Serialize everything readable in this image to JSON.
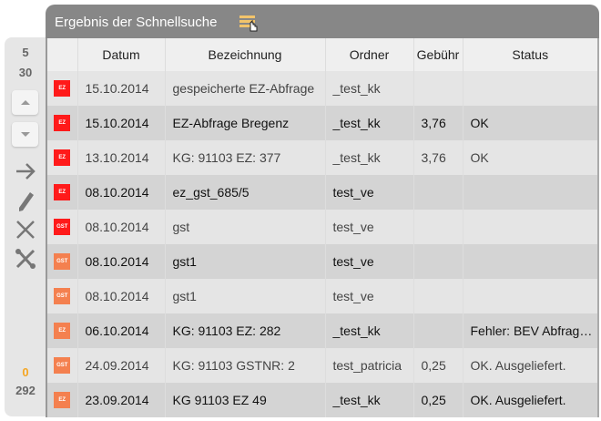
{
  "title": "Ergebnis der Schnellsuche",
  "sidebar": {
    "page_size_a": "5",
    "page_size_b": "30",
    "count_selected": "0",
    "count_total": "292",
    "count_selected_color": "#f5a623"
  },
  "columns": [
    "",
    "Datum",
    "Bezeichnung",
    "Ordner",
    "Gebühr",
    "Status"
  ],
  "badge_colors": {
    "red": "#ff1a1a",
    "orange": "#f4804f"
  },
  "rows": [
    {
      "type": "EZ",
      "color": "red",
      "datum": "15.10.2014",
      "bezeichnung": "gespeicherte EZ-Abfrage",
      "ordner": "_test_kk",
      "gebuehr": "",
      "status": ""
    },
    {
      "type": "EZ",
      "color": "red",
      "datum": "15.10.2014",
      "bezeichnung": "EZ-Abfrage Bregenz",
      "ordner": "_test_kk",
      "gebuehr": "3,76",
      "status": "OK"
    },
    {
      "type": "EZ",
      "color": "red",
      "datum": "13.10.2014",
      "bezeichnung": "KG: 91103 EZ: 377",
      "ordner": "_test_kk",
      "gebuehr": "3,76",
      "status": "OK"
    },
    {
      "type": "EZ",
      "color": "red",
      "datum": "08.10.2014",
      "bezeichnung": "ez_gst_685/5",
      "ordner": "test_ve",
      "gebuehr": "",
      "status": ""
    },
    {
      "type": "GST",
      "color": "red",
      "datum": "08.10.2014",
      "bezeichnung": "gst",
      "ordner": "test_ve",
      "gebuehr": "",
      "status": ""
    },
    {
      "type": "GST",
      "color": "orange",
      "datum": "08.10.2014",
      "bezeichnung": "gst1",
      "ordner": "test_ve",
      "gebuehr": "",
      "status": ""
    },
    {
      "type": "GST",
      "color": "orange",
      "datum": "08.10.2014",
      "bezeichnung": "gst1",
      "ordner": "test_ve",
      "gebuehr": "",
      "status": ""
    },
    {
      "type": "EZ",
      "color": "orange",
      "datum": "06.10.2014",
      "bezeichnung": "KG: 91103 EZ: 282",
      "ordner": "_test_kk",
      "gebuehr": "",
      "status": "Fehler: BEV Abfrage fehlgeschlagen"
    },
    {
      "type": "GST",
      "color": "orange",
      "datum": "24.09.2014",
      "bezeichnung": "KG: 91103 GSTNR: 2",
      "ordner": "test_patricia",
      "gebuehr": "0,25",
      "status": "OK. Ausgeliefert."
    },
    {
      "type": "EZ",
      "color": "orange",
      "datum": "23.09.2014",
      "bezeichnung": "KG 91103 EZ 49",
      "ordner": "_test_kk",
      "gebuehr": "0,25",
      "status": "OK. Ausgeliefert."
    }
  ]
}
